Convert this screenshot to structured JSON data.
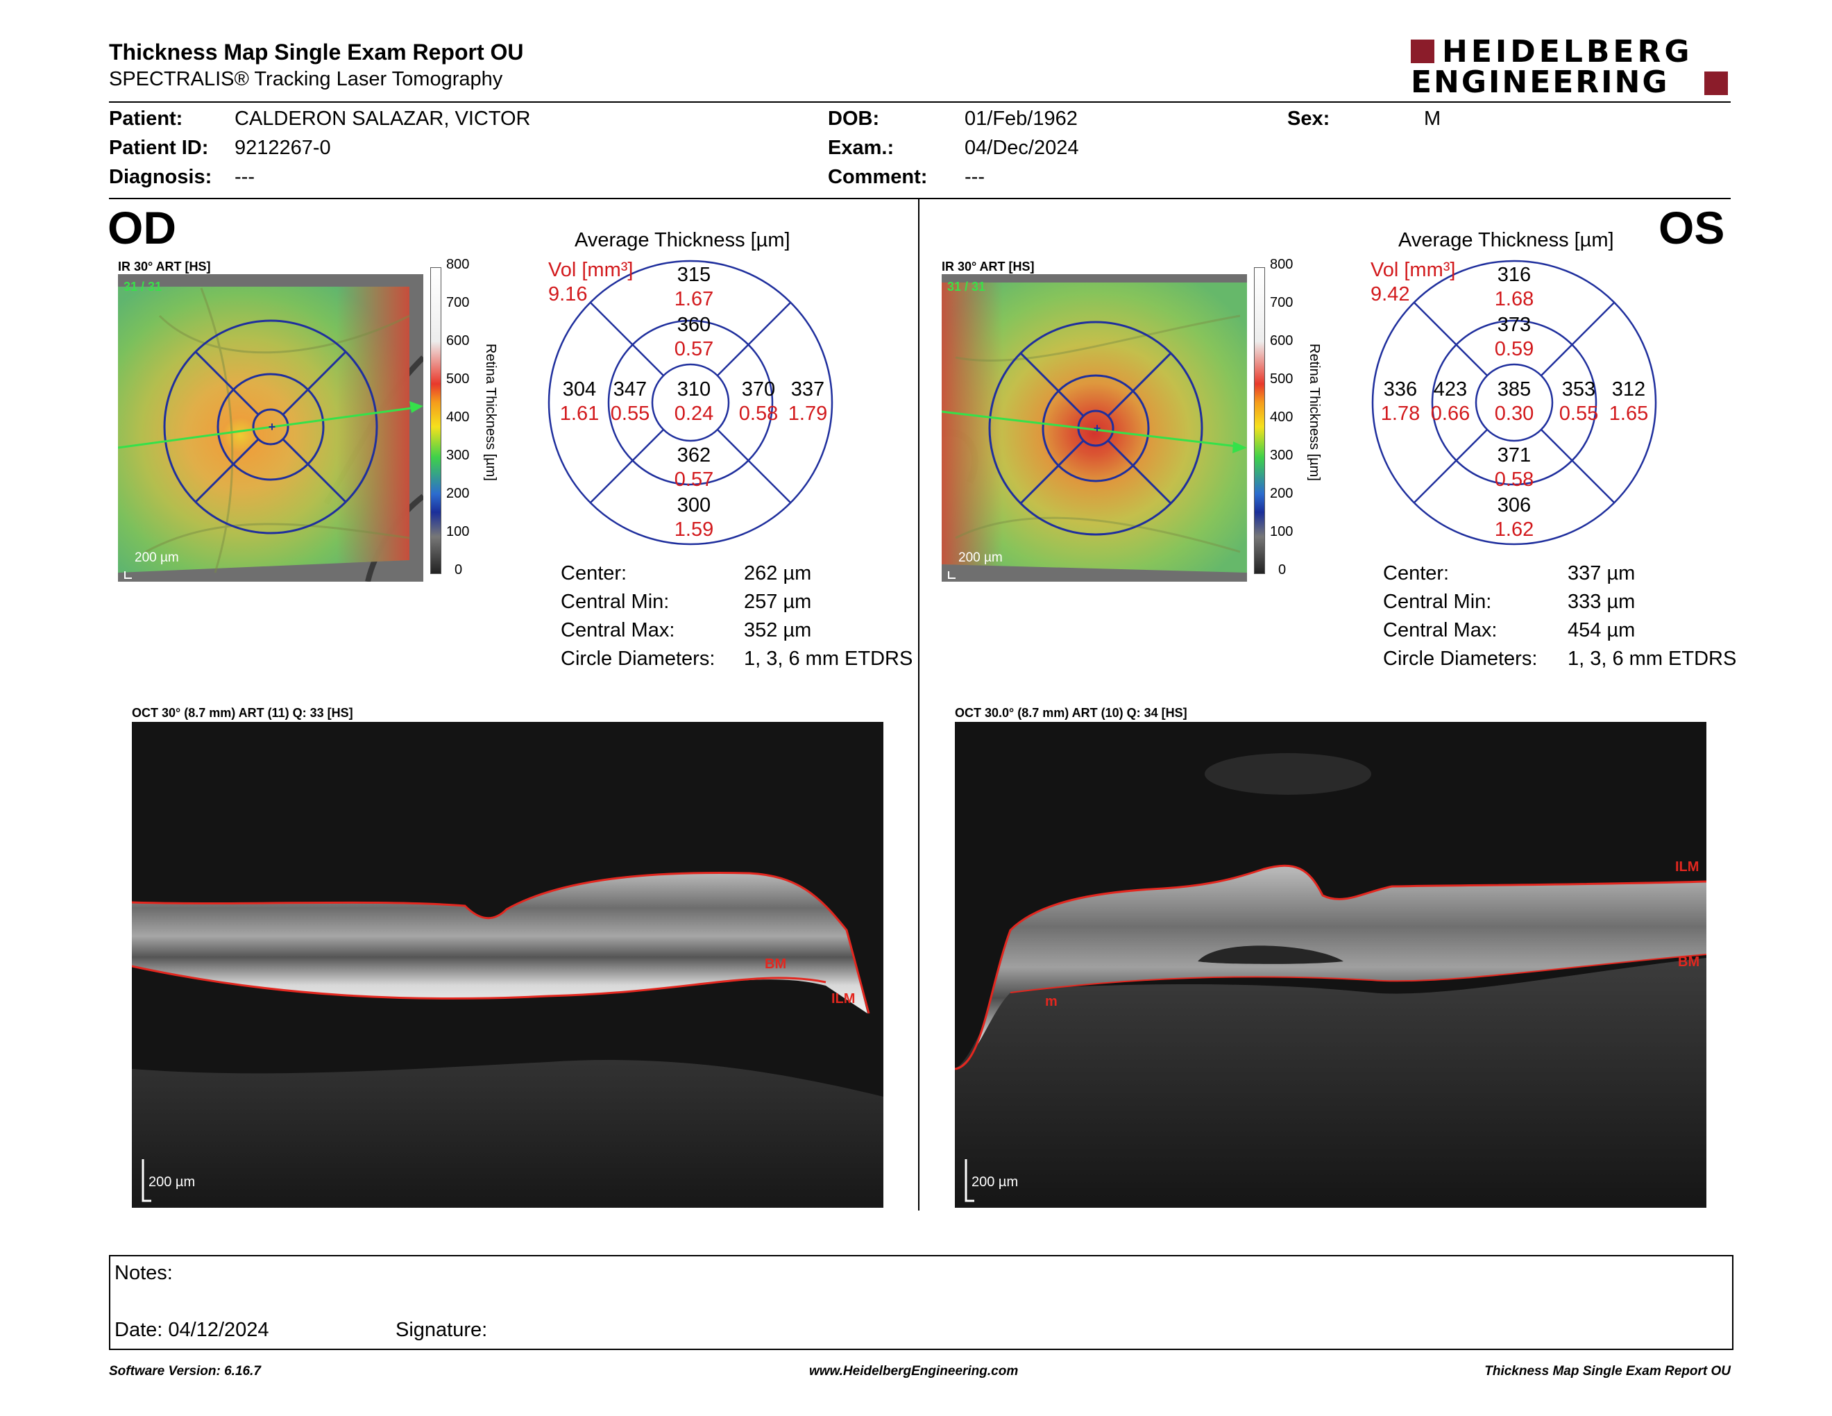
{
  "header": {
    "title": "Thickness Map Single Exam Report OU",
    "subtitle": "SPECTRALIS® Tracking Laser Tomography",
    "logo_line1": "HEIDELBERG",
    "logo_line2": "ENGINEERING"
  },
  "patient": {
    "patient_label": "Patient:",
    "patient_value": "CALDERON SALAZAR, VICTOR",
    "id_label": "Patient ID:",
    "id_value": "9212267-0",
    "diagnosis_label": "Diagnosis:",
    "diagnosis_value": "---",
    "dob_label": "DOB:",
    "dob_value": "01/Feb/1962",
    "exam_label": "Exam.:",
    "exam_value": "04/Dec/2024",
    "comment_label": "Comment:",
    "comment_value": "---",
    "sex_label": "Sex:",
    "sex_value": "M"
  },
  "od": {
    "eye": "OD",
    "ir_caption": "IR 30° ART [HS]",
    "frame_count": "31 / 31",
    "scale_label": "200 µm",
    "avg_title": "Average Thickness [µm]",
    "vol_label": "Vol [mm³]",
    "vol_value": "9.16",
    "sectors": {
      "center": {
        "t": "310",
        "v": "0.24"
      },
      "inner_sup": {
        "t": "360",
        "v": "0.57"
      },
      "inner_inf": {
        "t": "362",
        "v": "0.57"
      },
      "inner_nas": {
        "t": "370",
        "v": "0.58"
      },
      "inner_temp": {
        "t": "347",
        "v": "0.55"
      },
      "outer_sup": {
        "t": "315",
        "v": "1.67"
      },
      "outer_inf": {
        "t": "300",
        "v": "1.59"
      },
      "outer_nas": {
        "t": "337",
        "v": "1.79"
      },
      "outer_temp": {
        "t": "304",
        "v": "1.61"
      }
    },
    "stats": [
      {
        "label": "Center:",
        "value": "262 µm"
      },
      {
        "label": "Central Min:",
        "value": "257 µm"
      },
      {
        "label": "Central Max:",
        "value": "352 µm"
      },
      {
        "label": "Circle Diameters:",
        "value": "1, 3, 6 mm ETDRS"
      }
    ],
    "oct_caption": "OCT 30° (8.7 mm) ART (11) Q: 33 [HS]",
    "oct_labels": {
      "bm": "BM",
      "ilm": "ILM",
      "scale": "200 µm"
    }
  },
  "os": {
    "eye": "OS",
    "ir_caption": "IR 30° ART [HS]",
    "frame_count": "31 / 31",
    "scale_label": "200 µm",
    "avg_title": "Average Thickness [µm]",
    "vol_label": "Vol [mm³]",
    "vol_value": "9.42",
    "sectors": {
      "center": {
        "t": "385",
        "v": "0.30"
      },
      "inner_sup": {
        "t": "373",
        "v": "0.59"
      },
      "inner_inf": {
        "t": "371",
        "v": "0.58"
      },
      "inner_nas": {
        "t": "423",
        "v": "0.66"
      },
      "inner_temp": {
        "t": "353",
        "v": "0.55"
      },
      "outer_sup": {
        "t": "316",
        "v": "1.68"
      },
      "outer_inf": {
        "t": "306",
        "v": "1.62"
      },
      "outer_nas": {
        "t": "336",
        "v": "1.78"
      },
      "outer_temp": {
        "t": "312",
        "v": "1.65"
      }
    },
    "stats": [
      {
        "label": "Center:",
        "value": "337 µm"
      },
      {
        "label": "Central Min:",
        "value": "333 µm"
      },
      {
        "label": "Central Max:",
        "value": "454 µm"
      },
      {
        "label": "Circle Diameters:",
        "value": "1, 3, 6 mm ETDRS"
      }
    ],
    "oct_caption": "OCT 30.0° (8.7 mm) ART (10) Q: 34 [HS]",
    "oct_labels": {
      "bm": "BM",
      "ilm": "ILM",
      "scale": "200 µm",
      "m": "m"
    }
  },
  "colorbar": {
    "ticks": [
      "800",
      "700",
      "600",
      "500",
      "400",
      "300",
      "200",
      "100",
      "0"
    ],
    "axis_label": "Retina Thickness [µm]"
  },
  "notes": {
    "notes_label": "Notes:",
    "date_label": "Date: 04/12/2024",
    "signature_label": "Signature:"
  },
  "footer": {
    "left": "Software Version: 6.16.7",
    "center": "www.HeidelbergEngineering.com",
    "right": "Thickness Map Single Exam Report OU"
  }
}
